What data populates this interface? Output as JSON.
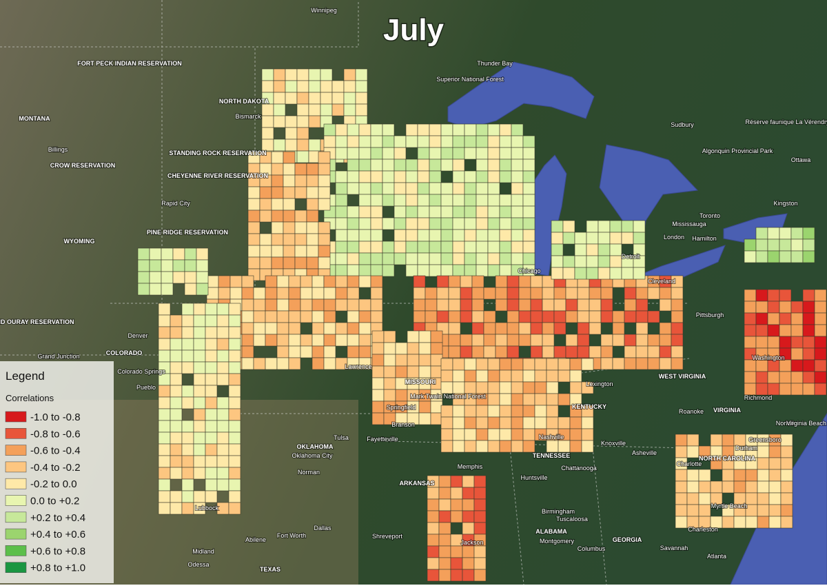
{
  "header": {
    "title": "July"
  },
  "legend": {
    "title": "Legend",
    "subtitle": "Correlations",
    "items": [
      {
        "label": "-1.0 to -0.8",
        "color": "#d7191c"
      },
      {
        "label": "-0.8 to -0.6",
        "color": "#e8553a"
      },
      {
        "label": "-0.6 to -0.4",
        "color": "#f4a05a"
      },
      {
        "label": "-0.4 to -0.2",
        "color": "#fdc680"
      },
      {
        "label": "-0.2 to 0.0",
        "color": "#fee9a8"
      },
      {
        "label": "0.0 to +0.2",
        "color": "#e8f5b0"
      },
      {
        "label": "+0.2 to +0.4",
        "color": "#c7e89a"
      },
      {
        "label": "+0.4 to +0.6",
        "color": "#9bd46e"
      },
      {
        "label": "+0.6 to +0.8",
        "color": "#5cbf4a"
      },
      {
        "label": "+0.8 to +1.0",
        "color": "#1a9641"
      }
    ]
  },
  "map_labels": [
    "Winnipeg",
    "Thunder Bay",
    "Superior National Forest",
    "NORTH DAKOTA",
    "MONTANA",
    "Bismarck",
    "Billings",
    "CROW RESERVATION",
    "FORT PECK INDIAN RESERVATION",
    "STANDING ROCK RESERVATION",
    "CHEYENNE RIVER RESERVATION",
    "PINE RIDGE RESERVATION",
    "WYOMING",
    "Rapid City",
    "Denver",
    "COLORADO",
    "Colorado Springs",
    "Pueblo",
    "UINTAH AND OURAY RESERVATION",
    "Grand Junction",
    "Chicago",
    "Detroit",
    "Cleveland",
    "Toronto",
    "Mississauga",
    "Hamilton",
    "London",
    "Kingston",
    "Ottawa",
    "Sudbury",
    "Algonquin Provincial Park",
    "Réserve faunique La Vérendrye",
    "MISSOURI",
    "Springfield",
    "Mark Twain National Forest",
    "Lawrence",
    "Lexington",
    "KENTUCKY",
    "Nashville",
    "TENNESSEE",
    "Knoxville",
    "Chattanooga",
    "Memphis",
    "ARKANSAS",
    "Huntsville",
    "Birmingham",
    "ALABAMA",
    "GEORGIA",
    "Montgomery",
    "Columbus",
    "Tuscaloosa",
    "Jackson",
    "OKLAHOMA",
    "Oklahoma City",
    "Tulsa",
    "Norman",
    "Fayetteville",
    "Lubbock",
    "Fort Worth",
    "Dallas",
    "Abilene",
    "Midland",
    "Odessa",
    "TEXAS",
    "Shreveport",
    "Pittsburgh",
    "Washington",
    "WEST VIRGINIA",
    "VIRGINIA",
    "Richmond",
    "Roanoke",
    "Norfolk",
    "Virginia Beach",
    "NORTH CAROLINA",
    "Greensboro",
    "Durham",
    "Charlotte",
    "Asheville",
    "Myrtle Beach",
    "Charleston",
    "Savannah",
    "Branson",
    "Atlanta"
  ]
}
